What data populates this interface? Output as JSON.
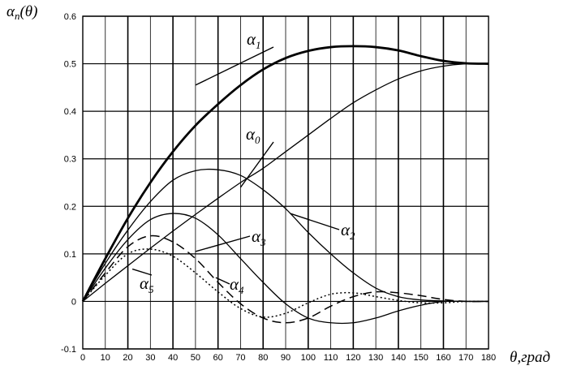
{
  "chart_data": {
    "type": "line",
    "ylabel": "αn(θ)",
    "ylabel_symbol": "α",
    "ylabel_sub": "n",
    "ylabel_rest": "(θ)",
    "xlabel": "θ,град",
    "xlim": [
      0,
      180
    ],
    "ylim": [
      -0.1,
      0.6
    ],
    "x_ticks": [
      0,
      10,
      20,
      30,
      40,
      50,
      60,
      70,
      80,
      90,
      100,
      110,
      120,
      130,
      140,
      150,
      160,
      170,
      180
    ],
    "y_ticks": [
      -0.1,
      0,
      0.1,
      0.2,
      0.3,
      0.4,
      0.5,
      0.6
    ],
    "y_tick_labels": [
      "-0.1",
      "0",
      "0.1",
      "0.2",
      "0.3",
      "0.4",
      "0.5",
      "0.6"
    ],
    "grid": true,
    "x": [
      0,
      10,
      20,
      30,
      40,
      50,
      60,
      70,
      80,
      90,
      100,
      110,
      120,
      130,
      140,
      150,
      160,
      170,
      180
    ],
    "series": [
      {
        "name": "α1",
        "symbol": "α",
        "sub": "1",
        "style": "bold",
        "values": [
          0,
          0.09,
          0.175,
          0.25,
          0.315,
          0.37,
          0.415,
          0.455,
          0.488,
          0.512,
          0.527,
          0.535,
          0.537,
          0.535,
          0.528,
          0.516,
          0.506,
          0.501,
          0.5
        ]
      },
      {
        "name": "α0",
        "symbol": "α",
        "sub": "0",
        "style": "solid",
        "values": [
          0,
          0.038,
          0.075,
          0.112,
          0.148,
          0.183,
          0.217,
          0.25,
          0.28,
          0.315,
          0.35,
          0.385,
          0.418,
          0.445,
          0.468,
          0.485,
          0.495,
          0.5,
          0.5
        ]
      },
      {
        "name": "α2",
        "symbol": "α",
        "sub": "2",
        "style": "solid",
        "values": [
          0,
          0.08,
          0.15,
          0.21,
          0.255,
          0.275,
          0.277,
          0.265,
          0.235,
          0.195,
          0.145,
          0.1,
          0.06,
          0.028,
          0.01,
          0.003,
          0.001,
          0,
          0
        ]
      },
      {
        "name": "α3",
        "symbol": "α",
        "sub": "3",
        "style": "solid",
        "values": [
          0,
          0.07,
          0.13,
          0.172,
          0.185,
          0.175,
          0.14,
          0.09,
          0.04,
          -0.005,
          -0.035,
          -0.045,
          -0.045,
          -0.035,
          -0.02,
          -0.008,
          0,
          0,
          0
        ]
      },
      {
        "name": "α4",
        "symbol": "α",
        "sub": "4",
        "style": "dashed",
        "values": [
          0,
          0.06,
          0.115,
          0.138,
          0.125,
          0.09,
          0.04,
          -0.005,
          -0.035,
          -0.045,
          -0.035,
          -0.01,
          0.01,
          0.02,
          0.018,
          0.012,
          0.004,
          0,
          0
        ]
      },
      {
        "name": "α5",
        "symbol": "α",
        "sub": "5",
        "style": "dotted",
        "values": [
          0,
          0.055,
          0.1,
          0.11,
          0.095,
          0.06,
          0.02,
          -0.015,
          -0.033,
          -0.025,
          -0.003,
          0.015,
          0.018,
          0.01,
          0.002,
          -0.003,
          -0.003,
          0,
          0
        ]
      }
    ]
  }
}
